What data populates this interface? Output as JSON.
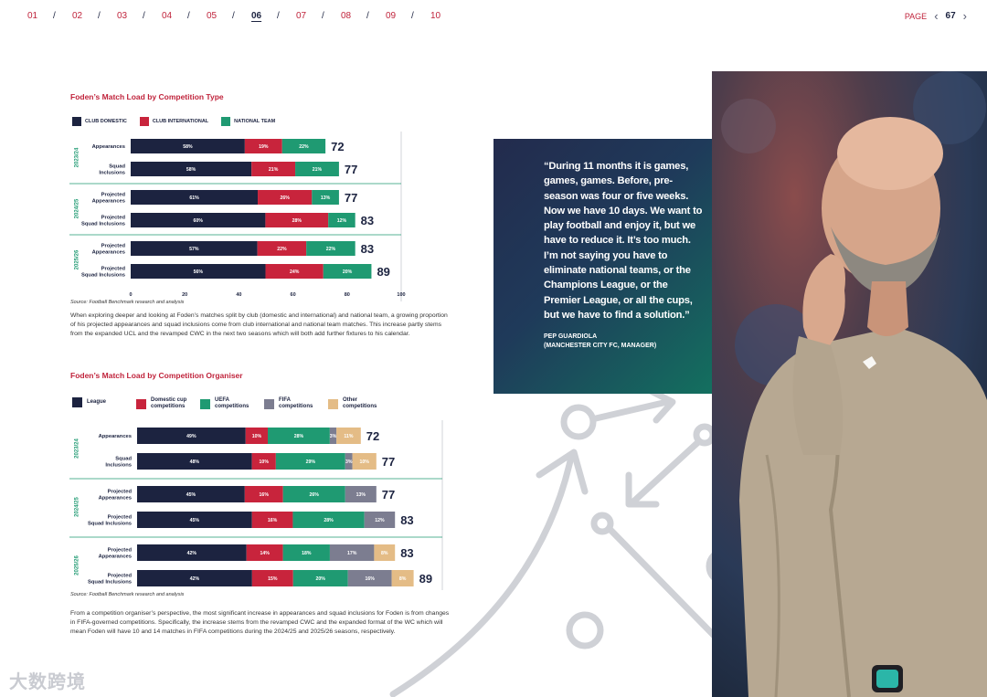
{
  "nav": {
    "sections": [
      "01",
      "02",
      "03",
      "04",
      "05",
      "06",
      "07",
      "08",
      "09",
      "10"
    ],
    "active": "06",
    "separator": "/",
    "page_label": "PAGE",
    "page_number": "67"
  },
  "quote": {
    "text": "“During 11 months it is games, games, games. Before, pre-season was four or five weeks. Now we have 10 days. We want to play football and enjoy it, but we have to reduce it. It’s too much. I’m not saying you have to eliminate national teams, or the Champions League, or the Premier League, or all the cups, but we have to find a solution.”",
    "author": "PEP GUARDIOLA",
    "role": "(MANCHESTER CITY FC, MANAGER)"
  },
  "watermark": "大数跨境",
  "chart_data": [
    {
      "type": "bar",
      "orientation": "horizontal",
      "stacked": true,
      "title": "Foden’s Match Load by Competition Type",
      "source": "Source: Football Benchmark research and analysis",
      "series": [
        {
          "name": "CLUB DOMESTIC",
          "color": "#1c2340"
        },
        {
          "name": "CLUB INTERNATIONAL",
          "color": "#c8243c"
        },
        {
          "name": "NATIONAL TEAM",
          "color": "#1f9a72"
        }
      ],
      "x_ticks": [
        0,
        20,
        40,
        60,
        80,
        100
      ],
      "xlim": [
        0,
        100
      ],
      "groups": [
        {
          "season": "2023/24",
          "rows": [
            {
              "label": [
                "Appearances"
              ],
              "total": 72,
              "shares": [
                58,
                19,
                22
              ]
            },
            {
              "label": [
                "Squad",
                "Inclusions"
              ],
              "total": 77,
              "shares": [
                58,
                21,
                21
              ]
            }
          ]
        },
        {
          "season": "2024/25",
          "rows": [
            {
              "label": [
                "Projected",
                "Appearances"
              ],
              "total": 77,
              "shares": [
                61,
                26,
                13
              ]
            },
            {
              "label": [
                "Projected",
                "Squad Inclusions"
              ],
              "total": 83,
              "shares": [
                60,
                28,
                12
              ]
            }
          ]
        },
        {
          "season": "2025/26",
          "rows": [
            {
              "label": [
                "Projected",
                "Appearances"
              ],
              "total": 83,
              "shares": [
                57,
                22,
                22
              ]
            },
            {
              "label": [
                "Projected",
                "Squad Inclusions"
              ],
              "total": 89,
              "shares": [
                56,
                24,
                20
              ]
            }
          ]
        }
      ],
      "paragraph": "When exploring deeper and looking at Foden’s matches split by club (domestic and international) and national team, a growing proportion of his projected appearances and squad inclusions come from club international and national team matches. This increase partly stems from the expanded UCL and the revamped CWC in the next two seasons which will both add further fixtures to his calendar."
    },
    {
      "type": "bar",
      "orientation": "horizontal",
      "stacked": true,
      "title": "Foden’s Match Load by Competition Organiser",
      "source": "Source: Football Benchmark research and analysis",
      "series": [
        {
          "name": [
            "League"
          ],
          "color": "#1c2340"
        },
        {
          "name": [
            "Domestic cup",
            "competitions"
          ],
          "color": "#c8243c"
        },
        {
          "name": [
            "UEFA",
            "competitions"
          ],
          "color": "#1f9a72"
        },
        {
          "name": [
            "FIFA",
            "competitions"
          ],
          "color": "#7c7d90"
        },
        {
          "name": [
            "Other",
            "competitions"
          ],
          "color": "#e4bc86"
        }
      ],
      "xlim": [
        0,
        100
      ],
      "groups": [
        {
          "season": "2023/24",
          "rows": [
            {
              "label": [
                "Appearances"
              ],
              "total": 72,
              "shares": [
                49,
                10,
                28,
                3,
                11
              ]
            },
            {
              "label": [
                "Squad",
                "Inclusions"
              ],
              "total": 77,
              "shares": [
                48,
                10,
                29,
                3,
                10
              ]
            }
          ]
        },
        {
          "season": "2024/25",
          "rows": [
            {
              "label": [
                "Projected",
                "Appearances"
              ],
              "total": 77,
              "shares": [
                45,
                16,
                26,
                13,
                0
              ]
            },
            {
              "label": [
                "Projected",
                "Squad Inclusions"
              ],
              "total": 83,
              "shares": [
                45,
                16,
                28,
                12,
                0
              ]
            }
          ]
        },
        {
          "season": "2025/26",
          "rows": [
            {
              "label": [
                "Projected",
                "Appearances"
              ],
              "total": 83,
              "shares": [
                42,
                14,
                18,
                17,
                8
              ]
            },
            {
              "label": [
                "Projected",
                "Squad Inclusions"
              ],
              "total": 89,
              "shares": [
                42,
                15,
                20,
                16,
                8
              ]
            }
          ]
        }
      ],
      "paragraph": "From a competition organiser’s perspective, the most significant increase in appearances and squad inclusions for Foden is from changes in FIFA-governed competitions. Specifically, the increase stems from the revamped CWC and the expanded format of the WC which will mean Foden will have 10 and 14 matches in FIFA competitions during the 2024/25 and 2025/26 seasons, respectively."
    }
  ]
}
